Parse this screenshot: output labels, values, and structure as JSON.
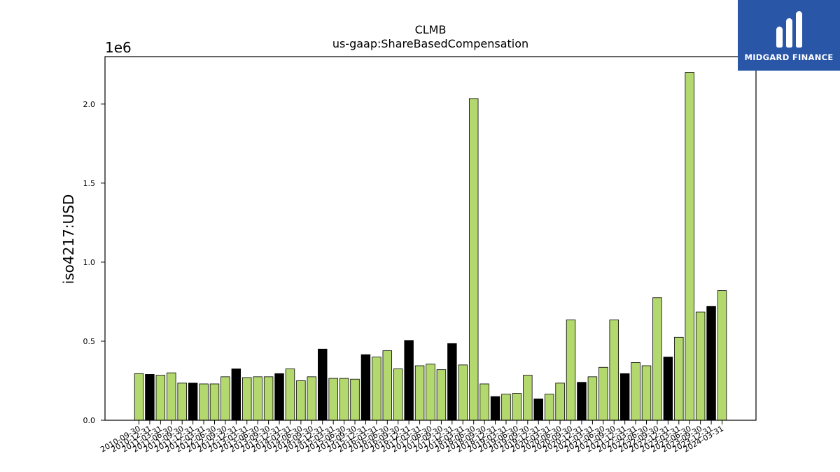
{
  "chart_data": {
    "type": "bar",
    "title": "CLMB",
    "subtitle": "us-gaap:ShareBasedCompensation",
    "ylabel": "iso4217:USD",
    "offset_label": "1e6",
    "ylim": [
      0,
      2300000
    ],
    "yticks": [
      "0.0",
      "0.5",
      "1.0",
      "1.5",
      "2.0"
    ],
    "ytick_values": [
      0,
      500000,
      1000000,
      1500000,
      2000000
    ],
    "colors": {
      "quarter": "#b3d96e",
      "annual": "#000000"
    },
    "categories": [
      "2010-09-30",
      "2010-12-31",
      "2011-03-31",
      "2011-06-30",
      "2011-09-30",
      "2011-12-31",
      "2012-03-31",
      "2012-06-30",
      "2012-09-30",
      "2012-12-31",
      "2013-03-31",
      "2013-06-30",
      "2013-09-30",
      "2013-12-31",
      "2014-03-31",
      "2014-06-30",
      "2014-09-30",
      "2014-12-31",
      "2015-03-31",
      "2015-06-30",
      "2015-09-30",
      "2015-12-31",
      "2016-03-31",
      "2016-06-30",
      "2016-09-30",
      "2016-12-31",
      "2017-03-31",
      "2017-06-30",
      "2017-09-30",
      "2017-12-31",
      "2018-03-31",
      "2018-06-30",
      "2018-09-30",
      "2018-12-31",
      "2019-03-31",
      "2019-06-30",
      "2019-09-30",
      "2019-12-31",
      "2020-03-31",
      "2020-06-30",
      "2020-09-30",
      "2020-12-31",
      "2021-03-31",
      "2021-06-30",
      "2021-09-30",
      "2021-12-31",
      "2022-03-31",
      "2022-06-30",
      "2022-09-30",
      "2022-12-31",
      "2023-03-31",
      "2023-06-30",
      "2023-09-30",
      "2023-12-31",
      "2024-03-31"
    ],
    "values": [
      295000,
      290000,
      285000,
      300000,
      235000,
      235000,
      230000,
      230000,
      275000,
      325000,
      270000,
      275000,
      275000,
      295000,
      325000,
      250000,
      275000,
      450000,
      265000,
      265000,
      260000,
      415000,
      400000,
      440000,
      325000,
      505000,
      345000,
      355000,
      320000,
      485000,
      350000,
      2035000,
      230000,
      150000,
      165000,
      170000,
      285000,
      135000,
      165000,
      235000,
      635000,
      240000,
      275000,
      335000,
      635000,
      295000,
      365000,
      345000,
      775000,
      400000,
      525000,
      2200000,
      685000,
      720000,
      820000
    ],
    "bar_kind": [
      "q",
      "a",
      "q",
      "q",
      "q",
      "a",
      "q",
      "q",
      "q",
      "a",
      "q",
      "q",
      "q",
      "a",
      "q",
      "q",
      "q",
      "a",
      "q",
      "q",
      "q",
      "a",
      "q",
      "q",
      "q",
      "a",
      "q",
      "q",
      "q",
      "a",
      "q",
      "q",
      "q",
      "a",
      "q",
      "q",
      "q",
      "a",
      "q",
      "q",
      "q",
      "a",
      "q",
      "q",
      "q",
      "a",
      "q",
      "q",
      "q",
      "a",
      "q",
      "q",
      "q",
      "a",
      "q"
    ]
  },
  "logo": {
    "text": "MIDGARD FINANCE",
    "icon": "midgard-logo-icon"
  }
}
